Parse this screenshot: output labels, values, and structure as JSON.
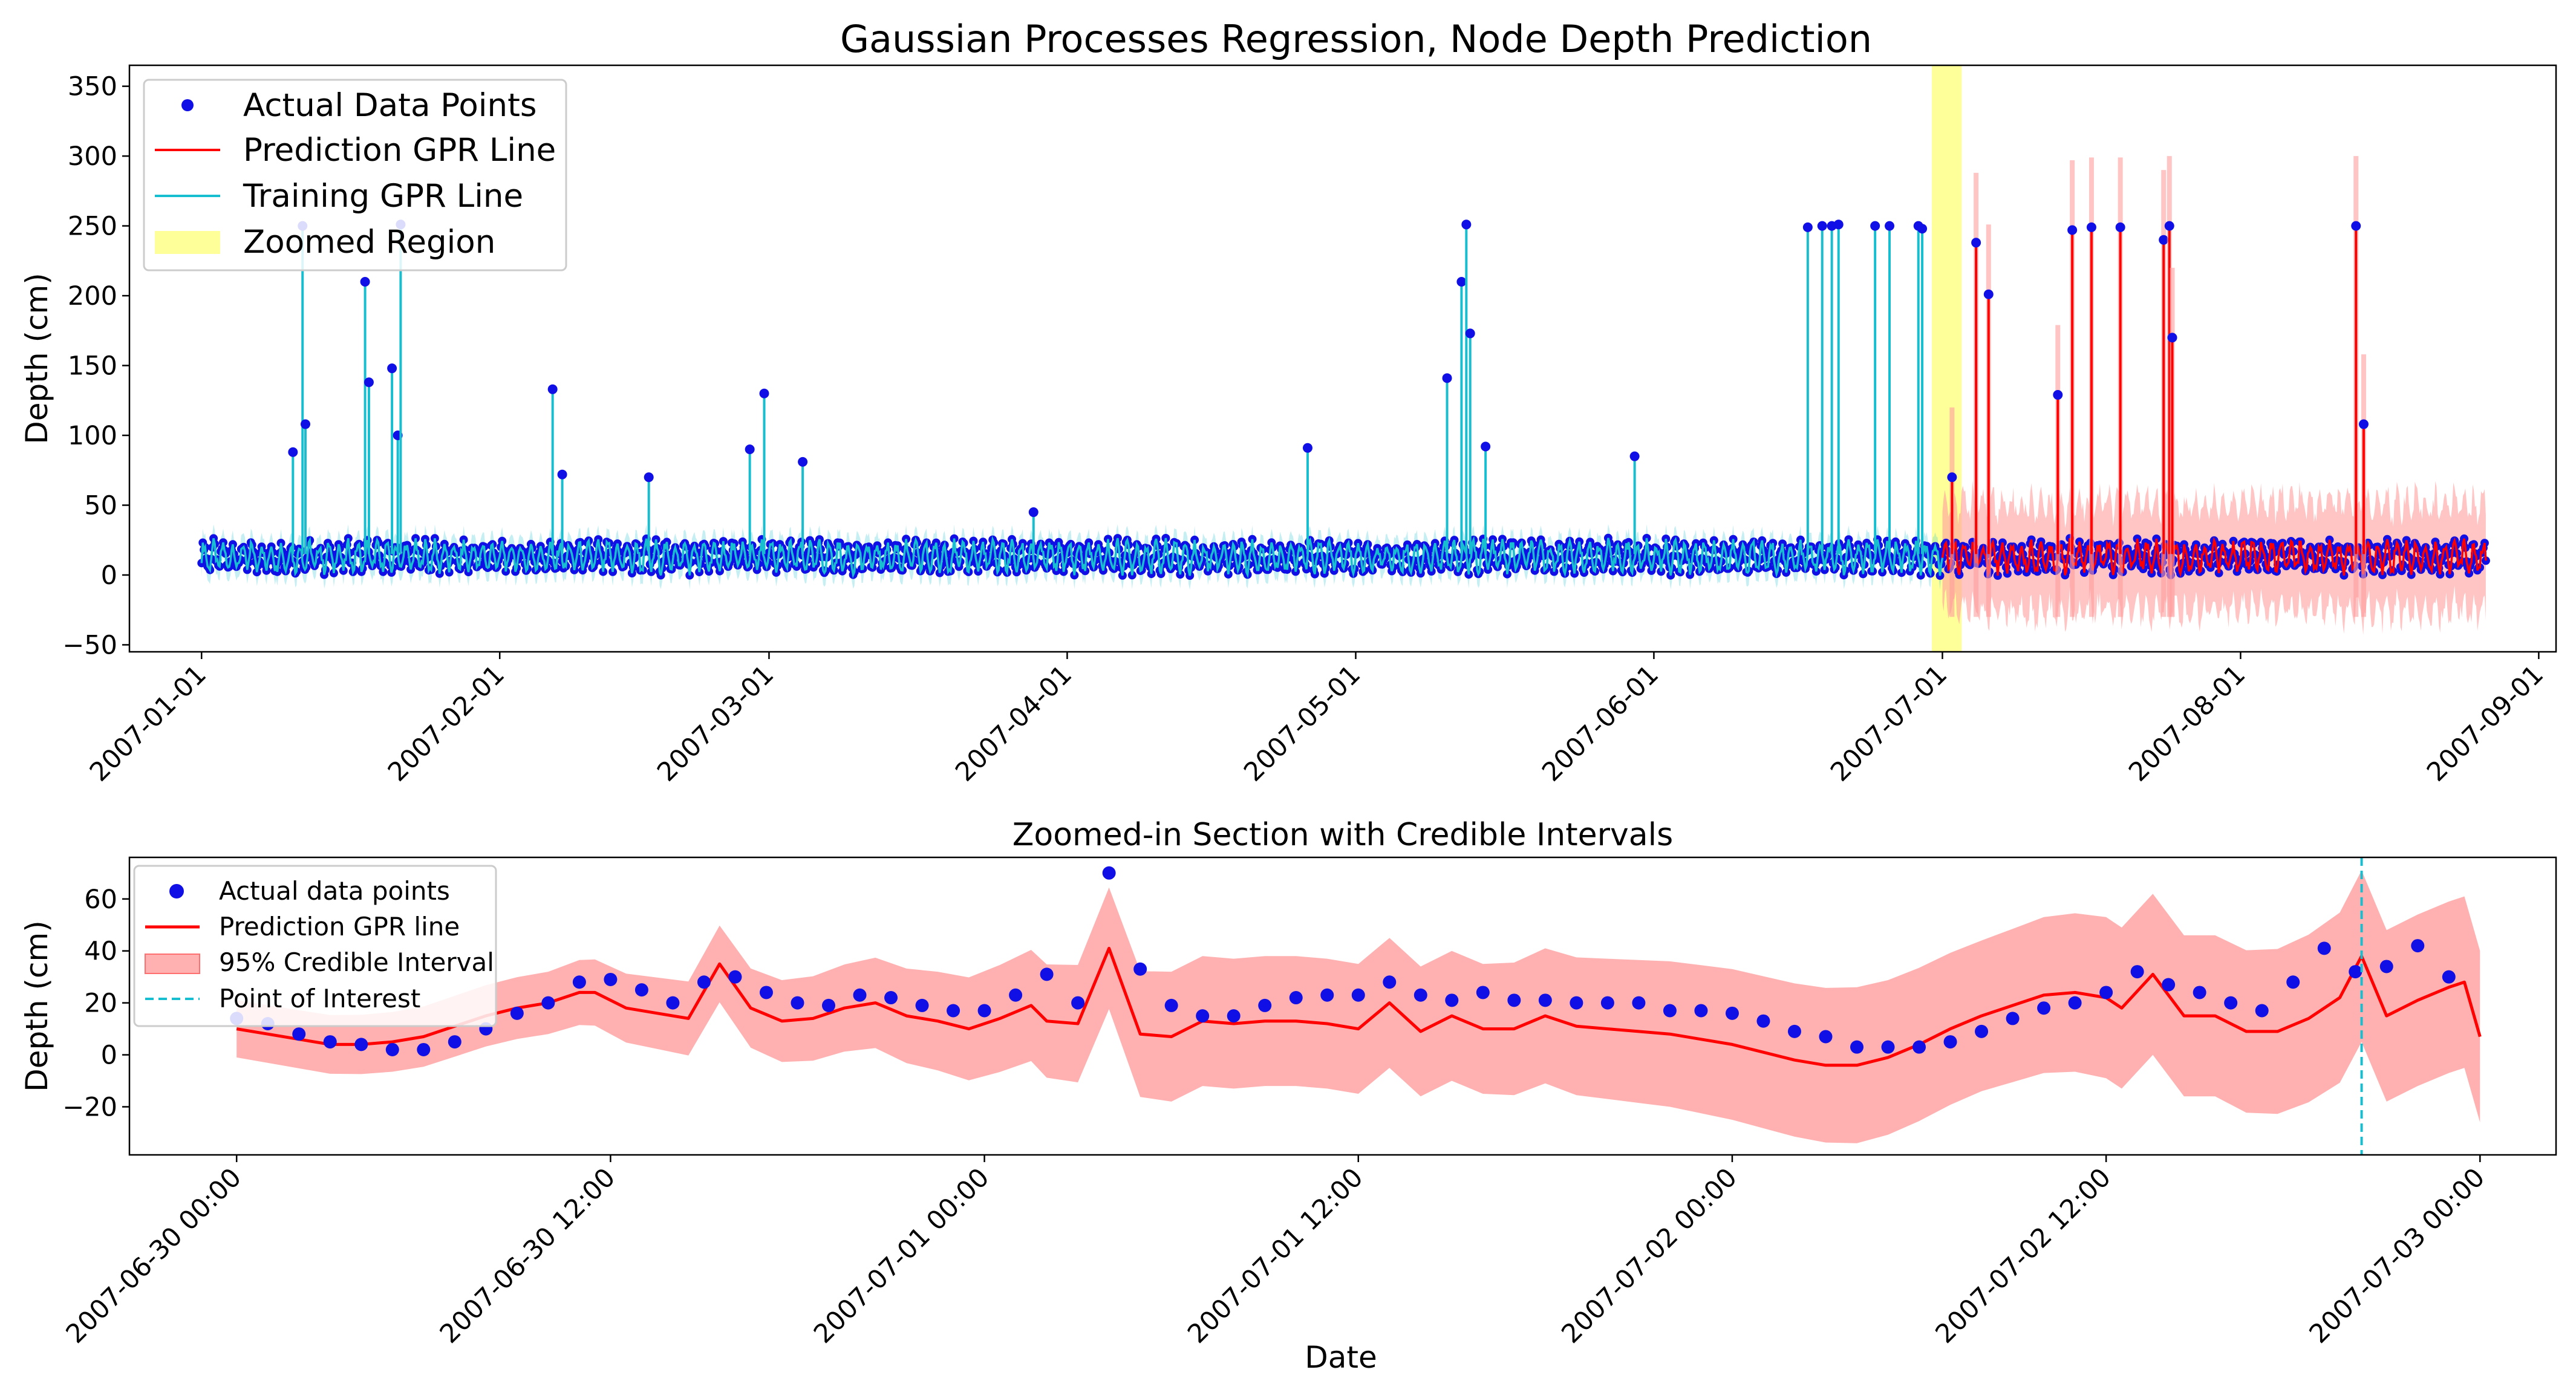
{
  "colors": {
    "actual": "#1010e6",
    "prediction": "#ff0000",
    "training": "#17becf",
    "zoom_region": "#ffff80",
    "credible": "#ff9d9d",
    "poi": "#17becf",
    "axis": "#000000",
    "background": "#ffffff"
  },
  "chart_data": [
    {
      "type": "line",
      "title": "Gaussian Processes Regression, Node Depth Prediction",
      "xlabel": "",
      "ylabel": "Depth (cm)",
      "x_range_days": [
        -7.5,
        244.8
      ],
      "ylim": [
        -55,
        365
      ],
      "x_ticks": [
        {
          "day": 0,
          "label": "2007-01-01"
        },
        {
          "day": 31,
          "label": "2007-02-01"
        },
        {
          "day": 59,
          "label": "2007-03-01"
        },
        {
          "day": 90,
          "label": "2007-04-01"
        },
        {
          "day": 120,
          "label": "2007-05-01"
        },
        {
          "day": 151,
          "label": "2007-06-01"
        },
        {
          "day": 181,
          "label": "2007-07-01"
        },
        {
          "day": 212,
          "label": "2007-08-01"
        },
        {
          "day": 243,
          "label": "2007-09-01"
        }
      ],
      "y_ticks": [
        -50,
        0,
        50,
        100,
        150,
        200,
        250,
        300,
        350
      ],
      "zoom_region_days": [
        179.9,
        183.0
      ],
      "training_end_day": 181,
      "prediction_end_day": 237.5,
      "baseline": {
        "mean": 13,
        "amplitude": 9,
        "period_days": 1.0
      },
      "prediction_band_halfwidth": 38,
      "spikes": [
        {
          "day": 9.5,
          "value": 88
        },
        {
          "day": 10.5,
          "value": 250
        },
        {
          "day": 10.8,
          "value": 108
        },
        {
          "day": 17.0,
          "value": 210
        },
        {
          "day": 17.4,
          "value": 138
        },
        {
          "day": 19.8,
          "value": 148
        },
        {
          "day": 20.4,
          "value": 100
        },
        {
          "day": 20.7,
          "value": 251
        },
        {
          "day": 36.5,
          "value": 133
        },
        {
          "day": 37.5,
          "value": 72
        },
        {
          "day": 46.5,
          "value": 70
        },
        {
          "day": 57.0,
          "value": 90
        },
        {
          "day": 58.5,
          "value": 130
        },
        {
          "day": 62.5,
          "value": 81
        },
        {
          "day": 86.5,
          "value": 45
        },
        {
          "day": 115.0,
          "value": 91
        },
        {
          "day": 129.5,
          "value": 141
        },
        {
          "day": 131.0,
          "value": 210
        },
        {
          "day": 131.5,
          "value": 251
        },
        {
          "day": 131.9,
          "value": 173
        },
        {
          "day": 133.5,
          "value": 92
        },
        {
          "day": 149.0,
          "value": 85
        },
        {
          "day": 167.0,
          "value": 249
        },
        {
          "day": 168.5,
          "value": 250
        },
        {
          "day": 169.5,
          "value": 250
        },
        {
          "day": 170.2,
          "value": 251
        },
        {
          "day": 174.0,
          "value": 250
        },
        {
          "day": 175.5,
          "value": 250
        },
        {
          "day": 178.5,
          "value": 250
        },
        {
          "day": 178.9,
          "value": 248
        },
        {
          "day": 182.0,
          "value": 70
        },
        {
          "day": 184.5,
          "value": 238
        },
        {
          "day": 185.8,
          "value": 201
        },
        {
          "day": 193.0,
          "value": 129
        },
        {
          "day": 194.5,
          "value": 247
        },
        {
          "day": 196.5,
          "value": 249
        },
        {
          "day": 199.5,
          "value": 249
        },
        {
          "day": 204.0,
          "value": 240
        },
        {
          "day": 204.6,
          "value": 250
        },
        {
          "day": 204.9,
          "value": 170
        },
        {
          "day": 224.0,
          "value": 250
        },
        {
          "day": 224.8,
          "value": 108
        }
      ],
      "legend": {
        "position": "upper left",
        "entries": [
          {
            "label": "Actual Data Points",
            "kind": "marker"
          },
          {
            "label": "Prediction GPR Line",
            "kind": "line_red"
          },
          {
            "label": "Training GPR Line",
            "kind": "line_cyan"
          },
          {
            "label": "Zoomed Region",
            "kind": "patch_yellow"
          }
        ]
      }
    },
    {
      "type": "line",
      "title": "Zoomed-in Section with Credible Intervals",
      "xlabel": "Date",
      "ylabel": "Depth (cm)",
      "x_range_hours": [
        -3.44,
        74.44
      ],
      "ylim": [
        -38.5,
        76
      ],
      "x_ticks": [
        {
          "hour": 0,
          "label": "2007-06-30 00:00"
        },
        {
          "hour": 12,
          "label": "2007-06-30 12:00"
        },
        {
          "hour": 24,
          "label": "2007-07-01 00:00"
        },
        {
          "hour": 36,
          "label": "2007-07-01 12:00"
        },
        {
          "hour": 48,
          "label": "2007-07-02 00:00"
        },
        {
          "hour": 60,
          "label": "2007-07-02 12:00"
        },
        {
          "hour": 72,
          "label": "2007-07-03 00:00"
        }
      ],
      "y_ticks": [
        -20,
        0,
        20,
        40,
        60
      ],
      "point_of_interest_hour": 68.2,
      "actual_points": [
        {
          "h": 0,
          "v": 14
        },
        {
          "h": 1,
          "v": 12
        },
        {
          "h": 2,
          "v": 8
        },
        {
          "h": 3,
          "v": 5
        },
        {
          "h": 4,
          "v": 4
        },
        {
          "h": 5,
          "v": 2
        },
        {
          "h": 6,
          "v": 2
        },
        {
          "h": 7,
          "v": 5
        },
        {
          "h": 8,
          "v": 10
        },
        {
          "h": 9,
          "v": 16
        },
        {
          "h": 10,
          "v": 20
        },
        {
          "h": 11,
          "v": 28
        },
        {
          "h": 12,
          "v": 29
        },
        {
          "h": 13,
          "v": 25
        },
        {
          "h": 14,
          "v": 20
        },
        {
          "h": 15,
          "v": 28
        },
        {
          "h": 16,
          "v": 30
        },
        {
          "h": 17,
          "v": 24
        },
        {
          "h": 18,
          "v": 20
        },
        {
          "h": 19,
          "v": 19
        },
        {
          "h": 20,
          "v": 23
        },
        {
          "h": 21,
          "v": 22
        },
        {
          "h": 22,
          "v": 19
        },
        {
          "h": 23,
          "v": 17
        },
        {
          "h": 24,
          "v": 17
        },
        {
          "h": 25,
          "v": 23
        },
        {
          "h": 26,
          "v": 31
        },
        {
          "h": 27,
          "v": 20
        },
        {
          "h": 28,
          "v": 70
        },
        {
          "h": 29,
          "v": 33
        },
        {
          "h": 30,
          "v": 19
        },
        {
          "h": 31,
          "v": 15
        },
        {
          "h": 32,
          "v": 15
        },
        {
          "h": 33,
          "v": 19
        },
        {
          "h": 34,
          "v": 22
        },
        {
          "h": 35,
          "v": 23
        },
        {
          "h": 36,
          "v": 23
        },
        {
          "h": 37,
          "v": 28
        },
        {
          "h": 38,
          "v": 23
        },
        {
          "h": 39,
          "v": 21
        },
        {
          "h": 40,
          "v": 24
        },
        {
          "h": 41,
          "v": 21
        },
        {
          "h": 42,
          "v": 21
        },
        {
          "h": 43,
          "v": 20
        },
        {
          "h": 44,
          "v": 20
        },
        {
          "h": 45,
          "v": 20
        },
        {
          "h": 46,
          "v": 17
        },
        {
          "h": 47,
          "v": 17
        },
        {
          "h": 48,
          "v": 16
        },
        {
          "h": 49,
          "v": 13
        },
        {
          "h": 50,
          "v": 9
        },
        {
          "h": 51,
          "v": 7
        },
        {
          "h": 52,
          "v": 3
        },
        {
          "h": 53,
          "v": 3
        },
        {
          "h": 54,
          "v": 3
        },
        {
          "h": 55,
          "v": 5
        },
        {
          "h": 56,
          "v": 9
        },
        {
          "h": 57,
          "v": 14
        },
        {
          "h": 58,
          "v": 18
        },
        {
          "h": 59,
          "v": 20
        },
        {
          "h": 60,
          "v": 24
        },
        {
          "h": 61,
          "v": 32
        },
        {
          "h": 62,
          "v": 27
        },
        {
          "h": 63,
          "v": 24
        },
        {
          "h": 64,
          "v": 20
        },
        {
          "h": 65,
          "v": 17
        },
        {
          "h": 66,
          "v": 28
        },
        {
          "h": 67,
          "v": 41
        },
        {
          "h": 68,
          "v": 32
        },
        {
          "h": 69,
          "v": 34
        },
        {
          "h": 70,
          "v": 42
        },
        {
          "h": 71,
          "v": 30
        }
      ],
      "prediction": [
        {
          "h": 0,
          "v": 10
        },
        {
          "h": 1,
          "v": 8
        },
        {
          "h": 2,
          "v": 6
        },
        {
          "h": 3,
          "v": 4
        },
        {
          "h": 4,
          "v": 4
        },
        {
          "h": 5,
          "v": 5
        },
        {
          "h": 6,
          "v": 7
        },
        {
          "h": 7,
          "v": 11
        },
        {
          "h": 8,
          "v": 15
        },
        {
          "h": 9,
          "v": 18
        },
        {
          "h": 10,
          "v": 20
        },
        {
          "h": 11,
          "v": 24
        },
        {
          "h": 11.5,
          "v": 24
        },
        {
          "h": 12.5,
          "v": 18
        },
        {
          "h": 13.5,
          "v": 16
        },
        {
          "h": 14.5,
          "v": 14
        },
        {
          "h": 15.5,
          "v": 35
        },
        {
          "h": 16.5,
          "v": 18
        },
        {
          "h": 17.5,
          "v": 13
        },
        {
          "h": 18.5,
          "v": 14
        },
        {
          "h": 19.5,
          "v": 18
        },
        {
          "h": 20.5,
          "v": 20
        },
        {
          "h": 21.5,
          "v": 15
        },
        {
          "h": 22.5,
          "v": 13
        },
        {
          "h": 23.5,
          "v": 10
        },
        {
          "h": 24.5,
          "v": 14
        },
        {
          "h": 25.5,
          "v": 19
        },
        {
          "h": 26,
          "v": 13
        },
        {
          "h": 27,
          "v": 12
        },
        {
          "h": 28,
          "v": 41
        },
        {
          "h": 29,
          "v": 8
        },
        {
          "h": 30,
          "v": 7
        },
        {
          "h": 31,
          "v": 13
        },
        {
          "h": 32,
          "v": 12
        },
        {
          "h": 33,
          "v": 13
        },
        {
          "h": 34,
          "v": 13
        },
        {
          "h": 35,
          "v": 12
        },
        {
          "h": 36,
          "v": 10
        },
        {
          "h": 37,
          "v": 20
        },
        {
          "h": 38,
          "v": 9
        },
        {
          "h": 39,
          "v": 15
        },
        {
          "h": 40,
          "v": 10
        },
        {
          "h": 41,
          "v": 10
        },
        {
          "h": 42,
          "v": 15
        },
        {
          "h": 43,
          "v": 11
        },
        {
          "h": 44,
          "v": 10
        },
        {
          "h": 45,
          "v": 9
        },
        {
          "h": 46,
          "v": 8
        },
        {
          "h": 47,
          "v": 6
        },
        {
          "h": 48,
          "v": 4
        },
        {
          "h": 49,
          "v": 1
        },
        {
          "h": 50,
          "v": -2
        },
        {
          "h": 51,
          "v": -4
        },
        {
          "h": 52,
          "v": -4
        },
        {
          "h": 53,
          "v": -1
        },
        {
          "h": 54,
          "v": 4
        },
        {
          "h": 55,
          "v": 10
        },
        {
          "h": 56,
          "v": 15
        },
        {
          "h": 57,
          "v": 19
        },
        {
          "h": 58,
          "v": 23
        },
        {
          "h": 59,
          "v": 24
        },
        {
          "h": 60,
          "v": 22
        },
        {
          "h": 60.5,
          "v": 18
        },
        {
          "h": 61.5,
          "v": 31
        },
        {
          "h": 62.5,
          "v": 15
        },
        {
          "h": 63.5,
          "v": 15
        },
        {
          "h": 64.5,
          "v": 9
        },
        {
          "h": 65.5,
          "v": 9
        },
        {
          "h": 66.5,
          "v": 14
        },
        {
          "h": 67.5,
          "v": 22
        },
        {
          "h": 68.2,
          "v": 38
        },
        {
          "h": 69,
          "v": 15
        },
        {
          "h": 70,
          "v": 21
        },
        {
          "h": 71,
          "v": 26
        },
        {
          "h": 71.5,
          "v": 28
        },
        {
          "h": 72,
          "v": 7
        }
      ],
      "ci_halfwidth": [
        {
          "h": 0,
          "v": 11
        },
        {
          "h": 10,
          "v": 12
        },
        {
          "h": 20,
          "v": 17
        },
        {
          "h": 30,
          "v": 25
        },
        {
          "h": 40,
          "v": 25
        },
        {
          "h": 48,
          "v": 29
        },
        {
          "h": 52,
          "v": 30
        },
        {
          "h": 56,
          "v": 29
        },
        {
          "h": 60,
          "v": 31
        },
        {
          "h": 64,
          "v": 31
        },
        {
          "h": 68,
          "v": 33
        },
        {
          "h": 72,
          "v": 33
        }
      ],
      "legend": {
        "position": "upper left",
        "entries": [
          {
            "label": "Actual data points",
            "kind": "marker"
          },
          {
            "label": "Prediction GPR line",
            "kind": "line_red"
          },
          {
            "label": "95% Credible Interval",
            "kind": "patch_red"
          },
          {
            "label": "Point of Interest",
            "kind": "line_dashed"
          }
        ]
      }
    }
  ]
}
